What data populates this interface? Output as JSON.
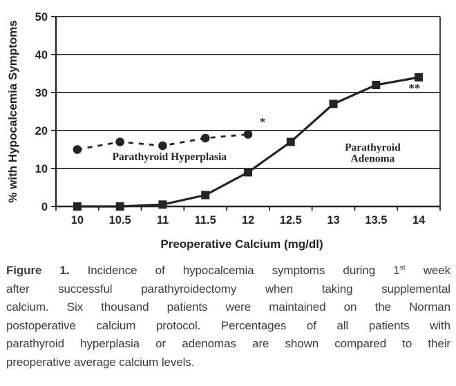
{
  "chart_data": {
    "type": "line",
    "x": [
      10,
      10.5,
      11,
      11.5,
      12,
      12.5,
      13,
      13.5,
      14
    ],
    "x_tick_labels": [
      "10",
      "10.5",
      "11",
      "11.5",
      "12",
      "12.5",
      "13",
      "13.5",
      "14"
    ],
    "y_ticks": [
      0,
      10,
      20,
      30,
      40,
      50
    ],
    "ylim": [
      0,
      50
    ],
    "grid": "horizontal",
    "legend_position": "in-plot-labels",
    "xlabel": "Preoperative Calcium (mg/dl)",
    "ylabel": "% with Hypocalcemia Symptoms",
    "series": [
      {
        "name": "Parathyroid Hyperplasia",
        "marker": "circle",
        "line_style": "dashed",
        "values": [
          15,
          17,
          16,
          18,
          19,
          null,
          null,
          null,
          null
        ]
      },
      {
        "name": "Parathyroid Adenoma",
        "marker": "square",
        "line_style": "solid",
        "values": [
          0,
          0,
          0.5,
          3,
          9,
          17,
          27,
          32,
          34
        ]
      }
    ],
    "annotations": [
      {
        "text": "Parathyroid Hyperplasia",
        "x": 11.08,
        "y": 12.2
      },
      {
        "text": "Parathyroid\nAdenoma",
        "x": 13.46,
        "y": 14.6
      },
      {
        "text": "*",
        "x": 12.17,
        "y": 21.3
      },
      {
        "text": "**",
        "x": 13.95,
        "y": 30.2
      }
    ],
    "ink_color": "#242424"
  },
  "caption": {
    "label": "Figure 1.",
    "line1_before_sup": " Incidence of hypocalcemia symptoms during 1",
    "superscript": "st",
    "line1_after_sup": " week",
    "lines": [
      "after successful parathyroidectomy when taking supplemental",
      "calcium. Six thousand patients were maintained on the Norman",
      "postoperative calcium protocol. Percentages of all patients with",
      "parathyroid hyperplasia or adenomas are shown compared to their",
      "preoperative average calcium levels."
    ],
    "text_color": "#3a3c3e"
  }
}
